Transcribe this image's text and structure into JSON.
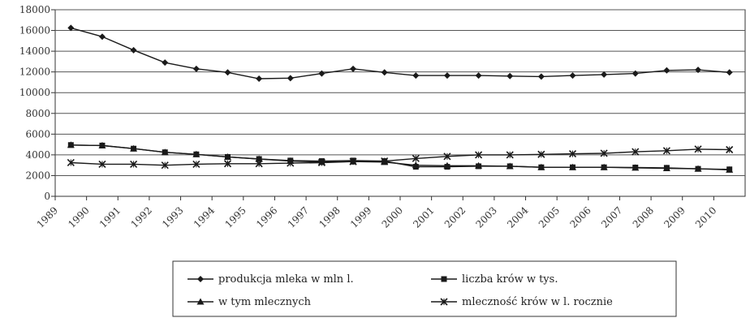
{
  "chart_data": {
    "type": "line",
    "title": "",
    "xlabel": "",
    "ylabel": "",
    "ylim": [
      0,
      18000
    ],
    "yticks": [
      "0",
      "2000",
      "4000",
      "6000",
      "8000",
      "10000",
      "12000",
      "14000",
      "16000",
      "18000"
    ],
    "categories": [
      "1989",
      "1990",
      "1991",
      "1992",
      "1993",
      "1994",
      "1995",
      "1996",
      "1997",
      "1998",
      "1999",
      "2000",
      "2001",
      "2002",
      "2003",
      "2004",
      "2005",
      "2006",
      "2007",
      "2008",
      "2009",
      "2010"
    ],
    "x": [
      1989.5,
      1990.5,
      1991.5,
      1992.5,
      1993.5,
      1994.5,
      1995.5,
      1996.5,
      1997.5,
      1998.5,
      1999.5,
      2000.5,
      2001.5,
      2002.5,
      2003.5,
      2004.5,
      2005.5,
      2006.5,
      2007.5,
      2008.5,
      2009.5,
      2010.5
    ],
    "grid": true,
    "legend": "bottom",
    "series": [
      {
        "name": "produkcja mleka w mln l.",
        "marker": "diamond",
        "values": [
          16250,
          15400,
          14100,
          12900,
          12300,
          11950,
          11350,
          11400,
          11850,
          12300,
          11950,
          11650,
          11650,
          11650,
          11600,
          11550,
          11650,
          11750,
          11850,
          12150,
          12200,
          11950
        ]
      },
      {
        "name": "liczba krów w tys.",
        "marker": "square",
        "values": [
          4950,
          4900,
          4600,
          4250,
          4050,
          3800,
          3600,
          3450,
          3400,
          3450,
          3400,
          2850,
          2850,
          2900,
          2900,
          2800,
          2800,
          2800,
          2780,
          2750,
          2650,
          2600
        ]
      },
      {
        "name": "w tym mlecznych",
        "marker": "triangle",
        "values": [
          4950,
          4900,
          4600,
          4250,
          4050,
          3800,
          3600,
          3400,
          3300,
          3350,
          3300,
          3000,
          2950,
          2950,
          2900,
          2800,
          2800,
          2800,
          2750,
          2700,
          2650,
          2550
        ]
      },
      {
        "name": "mleczność krów w l. rocznie",
        "marker": "x",
        "values": [
          3250,
          3100,
          3100,
          3000,
          3100,
          3150,
          3150,
          3200,
          3250,
          3350,
          3400,
          3650,
          3850,
          4000,
          4000,
          4050,
          4100,
          4150,
          4300,
          4400,
          4550,
          4500
        ]
      }
    ],
    "colors": {
      "line": "#1a1a1a",
      "grid": "#555555",
      "axis": "#333333"
    }
  }
}
